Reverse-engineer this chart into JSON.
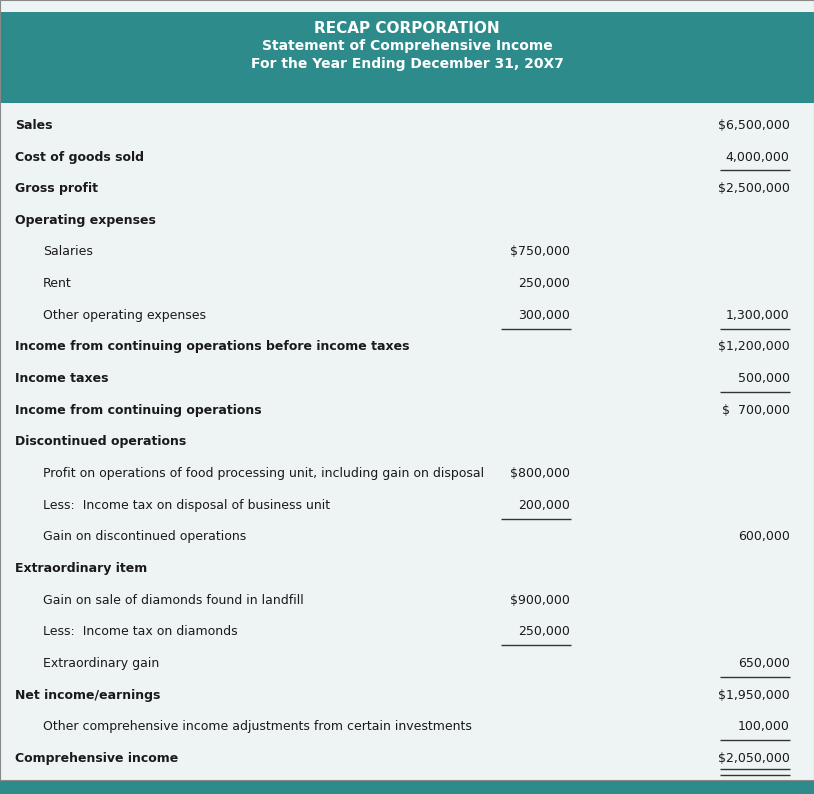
{
  "title_line1": "RECAP CORPORATION",
  "title_line2": "Statement of Comprehensive Income",
  "title_line3": "For the Year Ending December 31, 20X7",
  "header_bg": "#2E8B8B",
  "header_text_color": "#FFFFFF",
  "body_bg": "#EEF4F4",
  "body_text_color": "#1a1a1a",
  "teal_bar_color": "#2E8B8B",
  "rows": [
    {
      "label": "Sales",
      "col1": "",
      "col2": "$6,500,000",
      "bold": true,
      "indent": 0,
      "underline_col1": false,
      "underline_col2": false
    },
    {
      "label": "Cost of goods sold",
      "col1": "",
      "col2": "4,000,000",
      "bold": true,
      "indent": 0,
      "underline_col1": false,
      "underline_col2": true
    },
    {
      "label": "Gross profit",
      "col1": "",
      "col2": "$2,500,000",
      "bold": true,
      "indent": 0,
      "underline_col1": false,
      "underline_col2": false
    },
    {
      "label": "Operating expenses",
      "col1": "",
      "col2": "",
      "bold": true,
      "indent": 0,
      "underline_col1": false,
      "underline_col2": false
    },
    {
      "label": "Salaries",
      "col1": "$750,000",
      "col2": "",
      "bold": false,
      "indent": 1,
      "underline_col1": false,
      "underline_col2": false
    },
    {
      "label": "Rent",
      "col1": "250,000",
      "col2": "",
      "bold": false,
      "indent": 1,
      "underline_col1": false,
      "underline_col2": false
    },
    {
      "label": "Other operating expenses",
      "col1": "300,000",
      "col2": "1,300,000",
      "bold": false,
      "indent": 1,
      "underline_col1": true,
      "underline_col2": true
    },
    {
      "label": "Income from continuing operations before income taxes",
      "col1": "",
      "col2": "$1,200,000",
      "bold": true,
      "indent": 0,
      "underline_col1": false,
      "underline_col2": false
    },
    {
      "label": "Income taxes",
      "col1": "",
      "col2": "500,000",
      "bold": true,
      "indent": 0,
      "underline_col1": false,
      "underline_col2": true
    },
    {
      "label": "Income from continuing operations",
      "col1": "",
      "col2": "$  700,000",
      "bold": true,
      "indent": 0,
      "underline_col1": false,
      "underline_col2": false
    },
    {
      "label": "Discontinued operations",
      "col1": "",
      "col2": "",
      "bold": true,
      "indent": 0,
      "underline_col1": false,
      "underline_col2": false
    },
    {
      "label": "Profit on operations of food processing unit, including gain on disposal",
      "col1": "$800,000",
      "col2": "",
      "bold": false,
      "indent": 1,
      "underline_col1": false,
      "underline_col2": false
    },
    {
      "label": "Less:  Income tax on disposal of business unit",
      "col1": "200,000",
      "col2": "",
      "bold": false,
      "indent": 1,
      "underline_col1": true,
      "underline_col2": false
    },
    {
      "label": "Gain on discontinued operations",
      "col1": "",
      "col2": "600,000",
      "bold": false,
      "indent": 1,
      "underline_col1": false,
      "underline_col2": false
    },
    {
      "label": "Extraordinary item",
      "col1": "",
      "col2": "",
      "bold": true,
      "indent": 0,
      "underline_col1": false,
      "underline_col2": false
    },
    {
      "label": "Gain on sale of diamonds found in landfill",
      "col1": "$900,000",
      "col2": "",
      "bold": false,
      "indent": 1,
      "underline_col1": false,
      "underline_col2": false
    },
    {
      "label": "Less:  Income tax on diamonds",
      "col1": "250,000",
      "col2": "",
      "bold": false,
      "indent": 1,
      "underline_col1": true,
      "underline_col2": false
    },
    {
      "label": "Extraordinary gain",
      "col1": "",
      "col2": "650,000",
      "bold": false,
      "indent": 1,
      "underline_col1": false,
      "underline_col2": true
    },
    {
      "label": "Net income/earnings",
      "col1": "",
      "col2": "$1,950,000",
      "bold": true,
      "indent": 0,
      "underline_col1": false,
      "underline_col2": false
    },
    {
      "label": "Other comprehensive income adjustments from certain investments",
      "col1": "",
      "col2": "100,000",
      "bold": false,
      "indent": 1,
      "underline_col1": false,
      "underline_col2": true
    },
    {
      "label": "Comprehensive income",
      "col1": "",
      "col2": "$2,050,000",
      "bold": true,
      "indent": 0,
      "underline_col1": false,
      "underline_col2": true
    }
  ]
}
